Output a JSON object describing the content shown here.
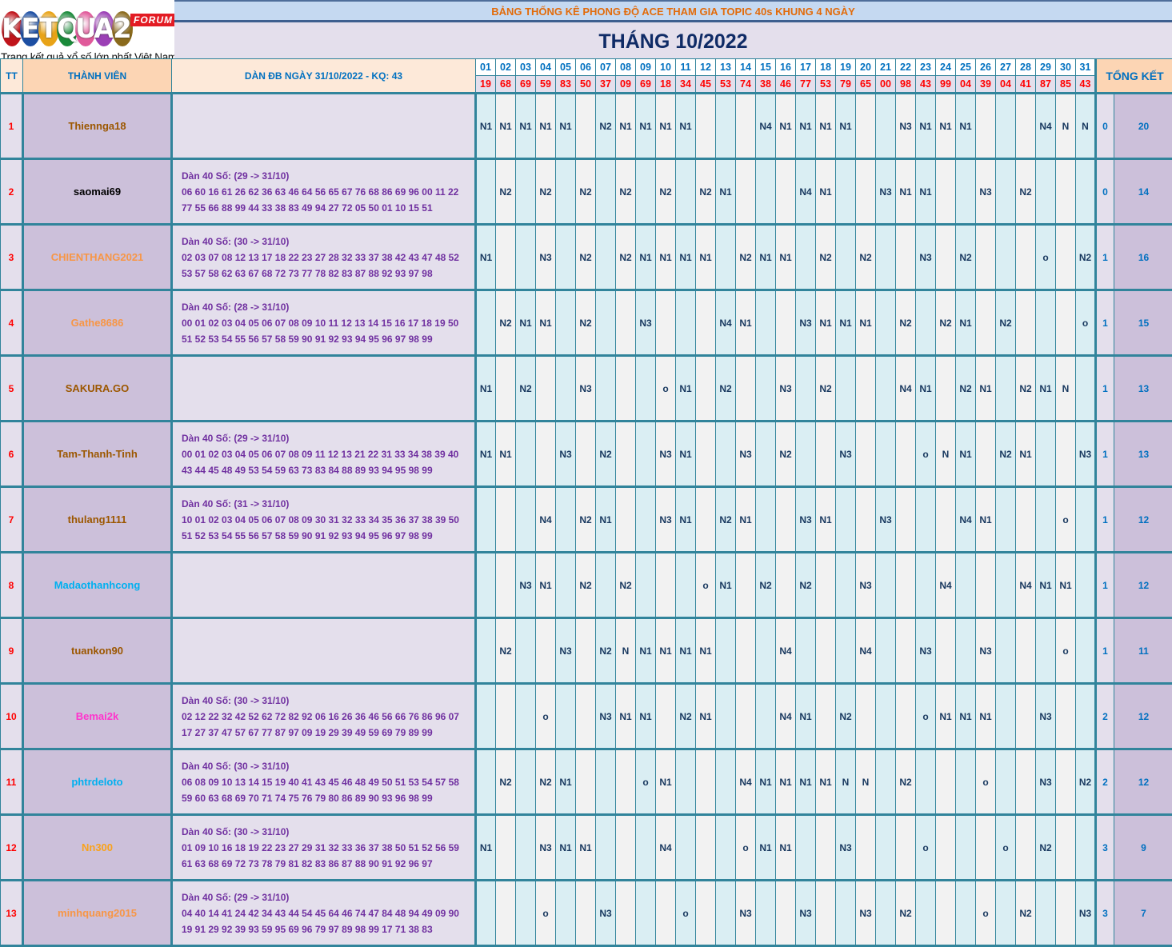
{
  "logo": {
    "brand": "KETQUA2",
    "letters": [
      "K",
      "E",
      "T",
      "Q",
      "U",
      "A",
      "2"
    ],
    "letter_colors": [
      "#c0141b",
      "#1d4fa3",
      "#e8a317",
      "#1a8a3a",
      "#e05a9a",
      "#9b3fb5",
      "#8a6a1c"
    ],
    "badge": "FORUM",
    "tagline": "Trang kết quả xổ số lớn nhất Việt Nam"
  },
  "title": "BẢNG THỐNG KÊ PHONG ĐỘ ACE THAM GIA TOPIC 40s KHUNG 4 NGÀY",
  "month": "THÁNG 10/2022",
  "headers": {
    "tt": "TT",
    "member": "THÀNH VIÊN",
    "dan": "DÀN ĐB NGÀY 31/10/2022 - KQ: 43",
    "summary": "TỔNG KẾT"
  },
  "days": [
    "01",
    "02",
    "03",
    "04",
    "05",
    "06",
    "07",
    "08",
    "09",
    "10",
    "11",
    "12",
    "13",
    "14",
    "15",
    "16",
    "17",
    "18",
    "19",
    "20",
    "21",
    "22",
    "23",
    "24",
    "25",
    "26",
    "27",
    "28",
    "29",
    "30",
    "31"
  ],
  "results": [
    "19",
    "68",
    "69",
    "59",
    "83",
    "50",
    "37",
    "09",
    "69",
    "18",
    "34",
    "45",
    "53",
    "74",
    "38",
    "46",
    "77",
    "53",
    "79",
    "65",
    "00",
    "98",
    "43",
    "99",
    "04",
    "39",
    "04",
    "41",
    "87",
    "85",
    "43"
  ],
  "rows": [
    {
      "tt": "1",
      "name": "Thiennga18",
      "color": "#9c5700",
      "dan_title": "",
      "dan_line1": "",
      "dan_line2": "",
      "cells": [
        "N1",
        "N1",
        "N1",
        "N1",
        "N1",
        "",
        "N2",
        "N1",
        "N1",
        "N1",
        "N1",
        "",
        "",
        "",
        "N4",
        "N1",
        "N1",
        "N1",
        "N1",
        "",
        "",
        "N3",
        "N1",
        "N1",
        "N1",
        "",
        "",
        "",
        "N4",
        "N",
        "N"
      ],
      "count": "0",
      "total": "20"
    },
    {
      "tt": "2",
      "name": "saomai69",
      "color": "#000000",
      "dan_title": "Dàn 40 Số: (29 -> 31/10)",
      "dan_line1": "06 60 16 61 26 62 36 63 46 64 56 65 67 76 68 86 69 96 00 11 22",
      "dan_line2": "77 55 66 88 99 44 33 38 83 49 94 27 72 05 50 01 10 15 51",
      "cells": [
        "",
        "N2",
        "",
        "N2",
        "",
        "N2",
        "",
        "N2",
        "",
        "N2",
        "",
        "N2",
        "N1",
        "",
        "",
        "",
        "N4",
        "N1",
        "",
        "",
        "N3",
        "N1",
        "N1",
        "",
        "",
        "N3",
        "",
        "N2",
        "",
        "",
        ""
      ],
      "count": "0",
      "total": "14"
    },
    {
      "tt": "3",
      "name": "CHIENTHANG2021",
      "color": "#f79646",
      "dan_title": "Dàn 40 Số: (30 -> 31/10)",
      "dan_line1": "02 03 07 08 12 13 17 18 22 23 27 28 32 33 37 38 42 43 47 48 52",
      "dan_line2": "53 57 58 62 63 67 68 72 73 77 78 82 83 87 88 92 93 97 98",
      "cells": [
        "N1",
        "",
        "",
        "N3",
        "",
        "N2",
        "",
        "N2",
        "N1",
        "N1",
        "N1",
        "N1",
        "",
        "N2",
        "N1",
        "N1",
        "",
        "N2",
        "",
        "N2",
        "",
        "",
        "N3",
        "",
        "N2",
        "",
        "",
        "",
        "o",
        "",
        "N2"
      ],
      "count": "1",
      "total": "16"
    },
    {
      "tt": "4",
      "name": "Gathe8686",
      "color": "#f79646",
      "dan_title": "Dàn 40 Số: (28 -> 31/10)",
      "dan_line1": "00 01 02 03 04 05 06 07 08 09 10 11 12 13 14 15 16 17 18 19 50",
      "dan_line2": "51 52 53 54 55 56 57 58 59 90 91 92 93 94 95 96 97 98 99",
      "cells": [
        "",
        "N2",
        "N1",
        "N1",
        "",
        "N2",
        "",
        "",
        "N3",
        "",
        "",
        "",
        "N4",
        "N1",
        "",
        "",
        "N3",
        "N1",
        "N1",
        "N1",
        "",
        "N2",
        "",
        "N2",
        "N1",
        "",
        "N2",
        "",
        "",
        "",
        "o"
      ],
      "count": "1",
      "total": "15"
    },
    {
      "tt": "5",
      "name": "SAKURA.GO",
      "color": "#9c5700",
      "dan_title": "",
      "dan_line1": "",
      "dan_line2": "",
      "cells": [
        "N1",
        "",
        "N2",
        "",
        "",
        "N3",
        "",
        "",
        "",
        "o",
        "N1",
        "",
        "N2",
        "",
        "",
        "N3",
        "",
        "N2",
        "",
        "",
        "",
        "N4",
        "N1",
        "",
        "N2",
        "N1",
        "",
        "N2",
        "N1",
        "N",
        ""
      ],
      "count": "1",
      "total": "13"
    },
    {
      "tt": "6",
      "name": "Tam-Thanh-Tinh",
      "color": "#9c5700",
      "dan_title": "Dàn 40 Số: (29 -> 31/10)",
      "dan_line1": "00 01 02 03 04 05 06 07 08 09 11 12 13 21 22 31 33 34 38 39 40",
      "dan_line2": "43 44 45 48 49 53 54 59 63 73 83 84 88 89 93 94 95 98 99",
      "cells": [
        "N1",
        "N1",
        "",
        "",
        "N3",
        "",
        "N2",
        "",
        "",
        "N3",
        "N1",
        "",
        "",
        "N3",
        "",
        "N2",
        "",
        "",
        "N3",
        "",
        "",
        "",
        "o",
        "N",
        "N1",
        "",
        "N2",
        "N1",
        "",
        "",
        "N3"
      ],
      "count": "1",
      "total": "13"
    },
    {
      "tt": "7",
      "name": "thulang1111",
      "color": "#9c5700",
      "dan_title": "Dàn 40 Số: (31 -> 31/10)",
      "dan_line1": "10 01 02 03 04 05 06 07 08 09 30 31 32 33 34 35 36 37 38 39 50",
      "dan_line2": "51 52 53 54 55 56 57 58 59 90 91 92 93 94 95 96 97 98 99",
      "cells": [
        "",
        "",
        "",
        "N4",
        "",
        "N2",
        "N1",
        "",
        "",
        "N3",
        "N1",
        "",
        "N2",
        "N1",
        "",
        "",
        "N3",
        "N1",
        "",
        "",
        "N3",
        "",
        "",
        "",
        "N4",
        "N1",
        "",
        "",
        "",
        "o",
        ""
      ],
      "count": "1",
      "total": "12"
    },
    {
      "tt": "8",
      "name": "Madaothanhcong",
      "color": "#00b0f0",
      "dan_title": "",
      "dan_line1": "",
      "dan_line2": "",
      "cells": [
        "",
        "",
        "N3",
        "N1",
        "",
        "N2",
        "",
        "N2",
        "",
        "",
        "",
        "o",
        "N1",
        "",
        "N2",
        "",
        "N2",
        "",
        "",
        "N3",
        "",
        "",
        "",
        "N4",
        "",
        "",
        "",
        "N4",
        "N1",
        "N1",
        ""
      ],
      "count": "1",
      "total": "12"
    },
    {
      "tt": "9",
      "name": "tuankon90",
      "color": "#9c5700",
      "dan_title": "",
      "dan_line1": "",
      "dan_line2": "",
      "cells": [
        "",
        "N2",
        "",
        "",
        "N3",
        "",
        "N2",
        "N",
        "N1",
        "N1",
        "N1",
        "N1",
        "",
        "",
        "",
        "N4",
        "",
        "",
        "",
        "N4",
        "",
        "",
        "N3",
        "",
        "",
        "N3",
        "",
        "",
        "",
        "o",
        ""
      ],
      "count": "1",
      "total": "11"
    },
    {
      "tt": "10",
      "name": "Bemai2k",
      "color": "#ff33cc",
      "dan_title": "Dàn 40 Số: (30 -> 31/10)",
      "dan_line1": "02 12 22 32 42 52 62 72 82 92 06 16 26 36 46 56 66 76 86 96 07",
      "dan_line2": "17 27 37 47 57 67 77 87 97 09 19 29 39 49 59 69 79 89 99",
      "cells": [
        "",
        "",
        "",
        "o",
        "",
        "",
        "N3",
        "N1",
        "N1",
        "",
        "N2",
        "N1",
        "",
        "",
        "",
        "N4",
        "N1",
        "",
        "N2",
        "",
        "",
        "",
        "o",
        "N1",
        "N1",
        "N1",
        "",
        "",
        "N3",
        "",
        ""
      ],
      "count": "2",
      "total": "12"
    },
    {
      "tt": "11",
      "name": "phtrdeloto",
      "color": "#00b0f0",
      "dan_title": "Dàn 40 Số: (30 -> 31/10)",
      "dan_line1": "06 08 09 10 13 14 15 19 40 41 43 45 46 48 49 50 51 53 54 57 58",
      "dan_line2": "59 60 63 68 69 70 71 74 75 76 79 80 86 89 90 93 96 98 99",
      "cells": [
        "",
        "N2",
        "",
        "N2",
        "N1",
        "",
        "",
        "",
        "o",
        "N1",
        "",
        "",
        "",
        "N4",
        "N1",
        "N1",
        "N1",
        "N1",
        "N",
        "N",
        "",
        "N2",
        "",
        "",
        "",
        "o",
        "",
        "",
        "N3",
        "",
        "N2"
      ],
      "count": "2",
      "total": "12"
    },
    {
      "tt": "12",
      "name": "Nn300",
      "color": "#f9a21b",
      "dan_title": "Dàn 40 Số: (30 -> 31/10)",
      "dan_line1": "01 09 10 16 18 19 22 23 27 29 31 32 33 36 37 38 50 51 52 56 59",
      "dan_line2": "61 63 68 69 72 73 78 79 81 82 83 86 87 88 90 91 92 96 97",
      "cells": [
        "N1",
        "",
        "",
        "N3",
        "N1",
        "N1",
        "",
        "",
        "",
        "N4",
        "",
        "",
        "",
        "o",
        "N1",
        "N1",
        "",
        "",
        "N3",
        "",
        "",
        "",
        "o",
        "",
        "",
        "",
        "o",
        "",
        "N2",
        "",
        ""
      ],
      "count": "3",
      "total": "9"
    },
    {
      "tt": "13",
      "name": "minhquang2015",
      "color": "#f79646",
      "dan_title": "Dàn 40 Số: (29 -> 31/10)",
      "dan_line1": "04 40 14 41 24 42 34 43 44 54 45 64 46 74 47 84 48 94 49 09 90",
      "dan_line2": "19 91 29 92 39 93 59 95 69 96 79 97 89 98 99 17 71 38 83",
      "cells": [
        "",
        "",
        "",
        "o",
        "",
        "",
        "N3",
        "",
        "",
        "",
        "o",
        "",
        "",
        "N3",
        "",
        "",
        "N3",
        "",
        "",
        "N3",
        "",
        "N2",
        "",
        "",
        "",
        "o",
        "",
        "N2",
        "",
        "",
        "N3"
      ],
      "count": "3",
      "total": "7"
    }
  ]
}
